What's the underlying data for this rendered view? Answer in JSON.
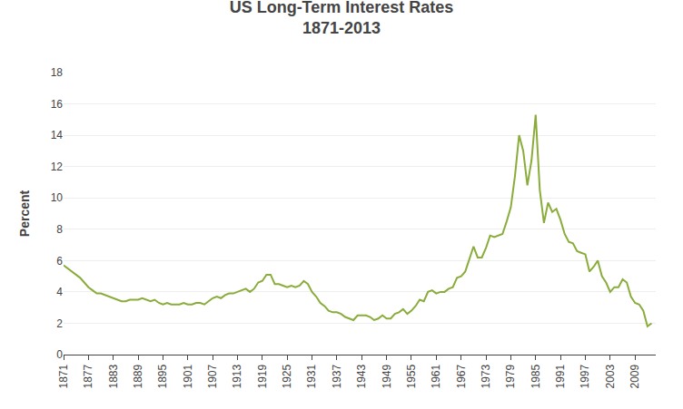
{
  "chart_data": {
    "type": "line",
    "title": "US Long-Term Interest Rates\n1871-2013",
    "ylabel": "Percent",
    "color": "#8aac3a",
    "grid": "y",
    "xlim": [
      1871,
      2014
    ],
    "xticks": [
      1871,
      1877,
      1883,
      1889,
      1895,
      1901,
      1907,
      1913,
      1919,
      1925,
      1931,
      1937,
      1943,
      1949,
      1955,
      1961,
      1967,
      1973,
      1979,
      1985,
      1991,
      1997,
      2003,
      2009
    ],
    "ylim": [
      0,
      18
    ],
    "yticks": [
      0,
      2,
      4,
      6,
      8,
      10,
      12,
      14,
      16,
      18
    ],
    "x": [
      1871,
      1872,
      1873,
      1874,
      1875,
      1876,
      1877,
      1878,
      1879,
      1880,
      1881,
      1882,
      1883,
      1884,
      1885,
      1886,
      1887,
      1888,
      1889,
      1890,
      1891,
      1892,
      1893,
      1894,
      1895,
      1896,
      1897,
      1898,
      1899,
      1900,
      1901,
      1902,
      1903,
      1904,
      1905,
      1906,
      1907,
      1908,
      1909,
      1910,
      1911,
      1912,
      1913,
      1914,
      1915,
      1916,
      1917,
      1918,
      1919,
      1920,
      1921,
      1922,
      1923,
      1924,
      1925,
      1926,
      1927,
      1928,
      1929,
      1930,
      1931,
      1932,
      1933,
      1934,
      1935,
      1936,
      1937,
      1938,
      1939,
      1940,
      1941,
      1942,
      1943,
      1944,
      1945,
      1946,
      1947,
      1948,
      1949,
      1950,
      1951,
      1952,
      1953,
      1954,
      1955,
      1956,
      1957,
      1958,
      1959,
      1960,
      1961,
      1962,
      1963,
      1964,
      1965,
      1966,
      1967,
      1968,
      1969,
      1970,
      1971,
      1972,
      1973,
      1974,
      1975,
      1976,
      1977,
      1978,
      1979,
      1980,
      1981,
      1982,
      1983,
      1984,
      1985,
      1986,
      1987,
      1988,
      1989,
      1990,
      1991,
      1992,
      1993,
      1994,
      1995,
      1996,
      1997,
      1998,
      1999,
      2000,
      2001,
      2002,
      2003,
      2004,
      2005,
      2006,
      2007,
      2008,
      2009,
      2010,
      2011,
      2012,
      2013
    ],
    "values": [
      5.7,
      5.5,
      5.3,
      5.1,
      4.9,
      4.6,
      4.3,
      4.1,
      3.9,
      3.9,
      3.8,
      3.7,
      3.6,
      3.5,
      3.4,
      3.4,
      3.5,
      3.5,
      3.5,
      3.6,
      3.5,
      3.4,
      3.5,
      3.3,
      3.2,
      3.3,
      3.2,
      3.2,
      3.2,
      3.3,
      3.2,
      3.2,
      3.3,
      3.3,
      3.2,
      3.4,
      3.6,
      3.7,
      3.6,
      3.8,
      3.9,
      3.9,
      4.0,
      4.1,
      4.2,
      4.0,
      4.2,
      4.6,
      4.7,
      5.1,
      5.1,
      4.5,
      4.5,
      4.4,
      4.3,
      4.4,
      4.3,
      4.4,
      4.7,
      4.5,
      4.0,
      3.7,
      3.3,
      3.1,
      2.8,
      2.7,
      2.7,
      2.6,
      2.4,
      2.3,
      2.2,
      2.5,
      2.5,
      2.5,
      2.4,
      2.2,
      2.3,
      2.5,
      2.3,
      2.3,
      2.6,
      2.7,
      2.9,
      2.6,
      2.8,
      3.1,
      3.5,
      3.4,
      4.0,
      4.1,
      3.9,
      4.0,
      4.0,
      4.2,
      4.3,
      4.9,
      5.0,
      5.3,
      6.1,
      6.9,
      6.2,
      6.2,
      6.8,
      7.6,
      7.5,
      7.6,
      7.7,
      8.5,
      9.4,
      11.4,
      14.0,
      13.0,
      10.8,
      12.4,
      15.3,
      10.5,
      8.4,
      9.7,
      9.1,
      9.3,
      8.6,
      7.7,
      7.2,
      7.1,
      6.6,
      6.5,
      6.4,
      5.3,
      5.6,
      6.0,
      5.0,
      4.6,
      4.0,
      4.3,
      4.3,
      4.8,
      4.6,
      3.7,
      3.3,
      3.2,
      2.8,
      1.8,
      2.0
    ]
  }
}
